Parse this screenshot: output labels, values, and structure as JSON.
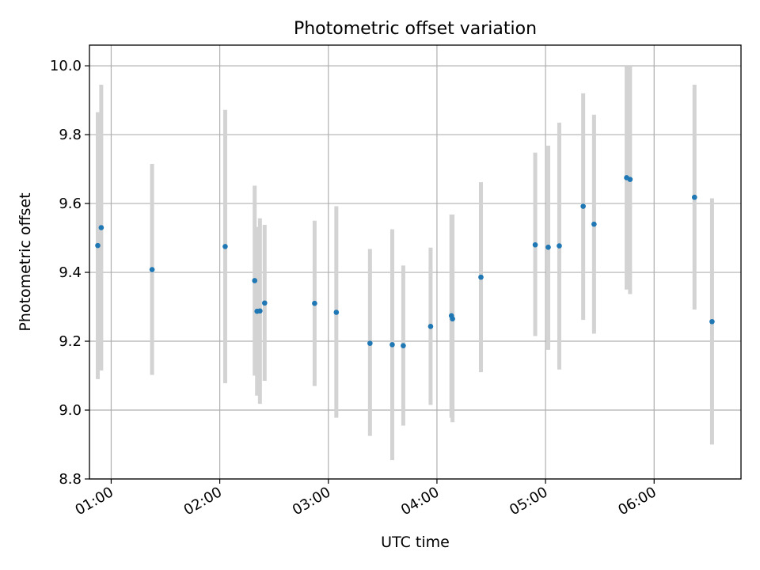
{
  "chart_data": {
    "type": "scatter",
    "title": "Photometric offset variation",
    "xlabel": "UTC time",
    "ylabel": "Photometric offset",
    "xlim": [
      48,
      408
    ],
    "ylim": [
      8.8,
      10.06
    ],
    "x_unit": "minutes after 00:00 UTC",
    "x_ticks": [
      {
        "value": 60,
        "label": "01:00"
      },
      {
        "value": 120,
        "label": "02:00"
      },
      {
        "value": 180,
        "label": "03:00"
      },
      {
        "value": 240,
        "label": "04:00"
      },
      {
        "value": 300,
        "label": "05:00"
      },
      {
        "value": 360,
        "label": "06:00"
      }
    ],
    "y_ticks": [
      {
        "value": 8.8,
        "label": "8.8"
      },
      {
        "value": 9.0,
        "label": "9.0"
      },
      {
        "value": 9.2,
        "label": "9.2"
      },
      {
        "value": 9.4,
        "label": "9.4"
      },
      {
        "value": 9.6,
        "label": "9.6"
      },
      {
        "value": 9.8,
        "label": "9.8"
      },
      {
        "value": 10.0,
        "label": "10.0"
      }
    ],
    "grid": true,
    "series": [
      {
        "name": "photometric offset",
        "color": "#1f77b4",
        "errorbar_color": "#d3d3d3",
        "points": [
          {
            "x": 52.6,
            "y": 9.478,
            "lo": 9.09,
            "hi": 9.865
          },
          {
            "x": 54.5,
            "y": 9.53,
            "lo": 9.115,
            "hi": 9.945
          },
          {
            "x": 82.6,
            "y": 9.408,
            "lo": 9.102,
            "hi": 9.715
          },
          {
            "x": 123.0,
            "y": 9.475,
            "lo": 9.078,
            "hi": 9.872
          },
          {
            "x": 139.3,
            "y": 9.376,
            "lo": 9.1,
            "hi": 9.652
          },
          {
            "x": 140.6,
            "y": 9.287,
            "lo": 9.042,
            "hi": 9.532
          },
          {
            "x": 142.2,
            "y": 9.288,
            "lo": 9.018,
            "hi": 9.557
          },
          {
            "x": 144.8,
            "y": 9.311,
            "lo": 9.085,
            "hi": 9.538
          },
          {
            "x": 172.4,
            "y": 9.31,
            "lo": 9.07,
            "hi": 9.55
          },
          {
            "x": 184.4,
            "y": 9.284,
            "lo": 8.978,
            "hi": 9.592
          },
          {
            "x": 203.0,
            "y": 9.194,
            "lo": 8.925,
            "hi": 9.468
          },
          {
            "x": 215.3,
            "y": 9.19,
            "lo": 8.855,
            "hi": 9.525
          },
          {
            "x": 221.4,
            "y": 9.187,
            "lo": 8.955,
            "hi": 9.42
          },
          {
            "x": 236.5,
            "y": 9.243,
            "lo": 9.015,
            "hi": 9.472
          },
          {
            "x": 248.0,
            "y": 9.274,
            "lo": 8.978,
            "hi": 9.568
          },
          {
            "x": 248.6,
            "y": 9.265,
            "lo": 8.965,
            "hi": 9.568
          },
          {
            "x": 264.3,
            "y": 9.386,
            "lo": 9.11,
            "hi": 9.662
          },
          {
            "x": 294.3,
            "y": 9.48,
            "lo": 9.215,
            "hi": 9.748
          },
          {
            "x": 301.5,
            "y": 9.473,
            "lo": 9.175,
            "hi": 9.768
          },
          {
            "x": 307.6,
            "y": 9.477,
            "lo": 9.118,
            "hi": 9.835
          },
          {
            "x": 320.8,
            "y": 9.592,
            "lo": 9.262,
            "hi": 9.92
          },
          {
            "x": 326.8,
            "y": 9.54,
            "lo": 9.222,
            "hi": 9.858
          },
          {
            "x": 344.8,
            "y": 9.675,
            "lo": 9.35,
            "hi": 10.0
          },
          {
            "x": 346.7,
            "y": 9.67,
            "lo": 9.337,
            "hi": 10.0
          },
          {
            "x": 382.3,
            "y": 9.618,
            "lo": 9.292,
            "hi": 9.945
          },
          {
            "x": 392.0,
            "y": 9.257,
            "lo": 8.9,
            "hi": 9.615
          }
        ]
      }
    ]
  }
}
